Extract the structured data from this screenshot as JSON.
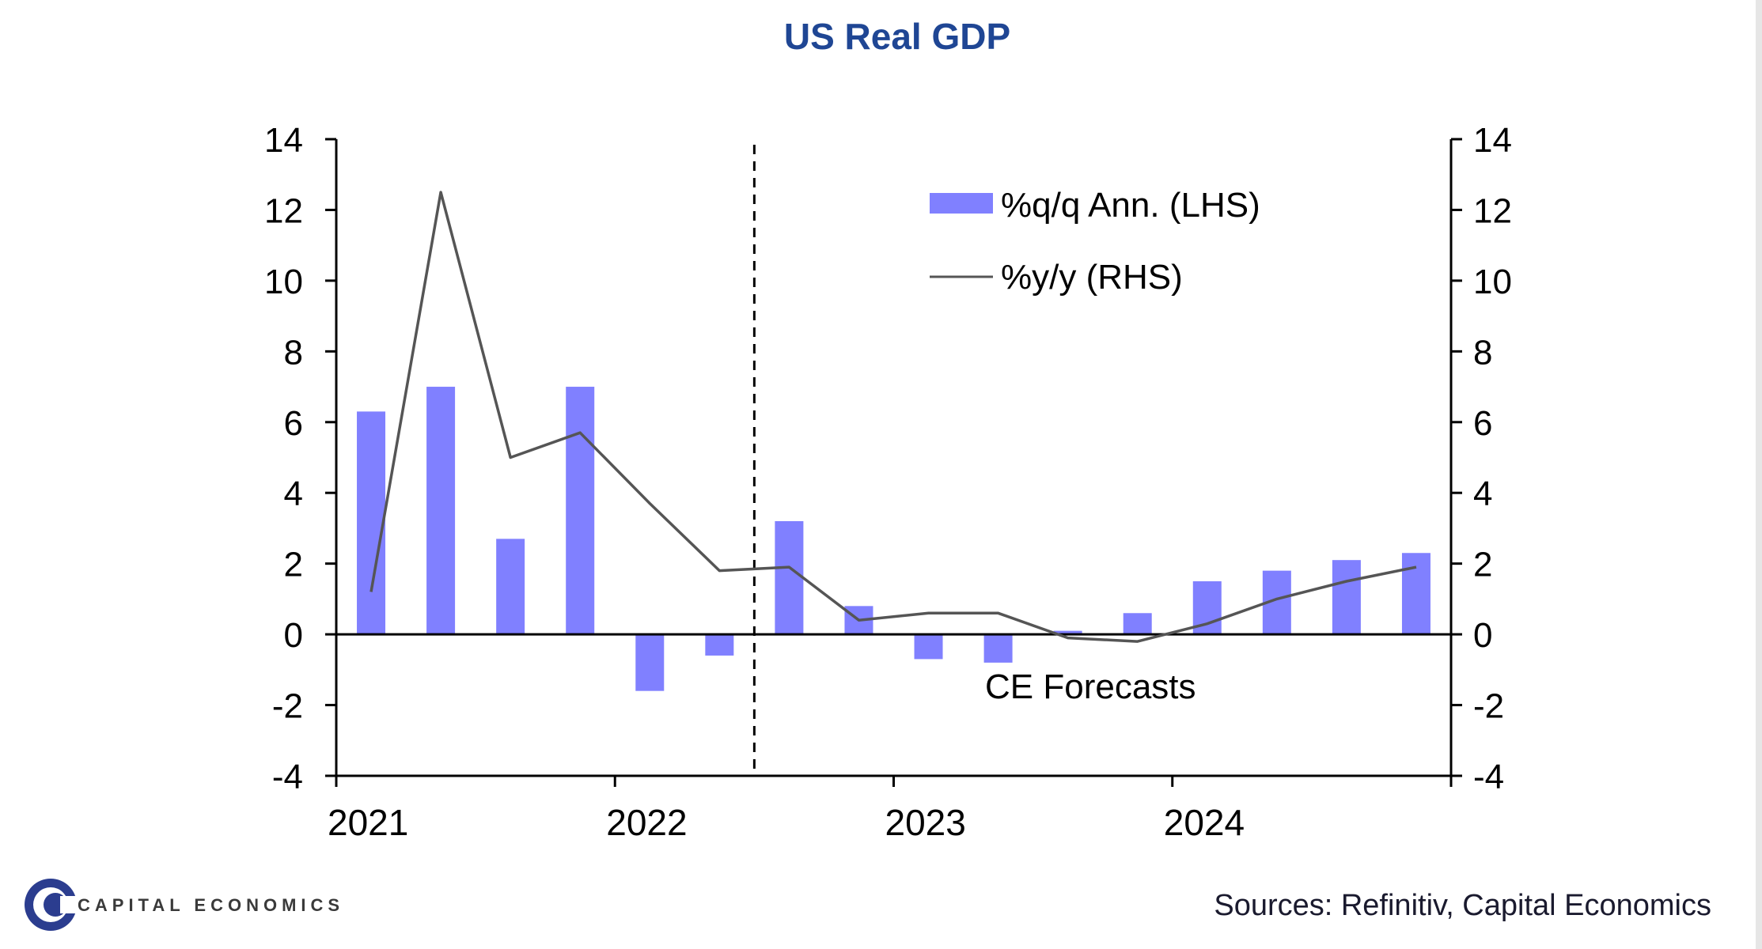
{
  "chart_data": {
    "type": "bar",
    "title": "US Real GDP",
    "x_ticks": [
      "2021",
      "2022",
      "2023",
      "2024"
    ],
    "y_left": {
      "min": -4,
      "max": 14,
      "ticks": [
        "14",
        "12",
        "10",
        "8",
        "6",
        "4",
        "2",
        "0",
        "-2",
        "-4"
      ]
    },
    "y_right": {
      "min": -4,
      "max": 14,
      "ticks": [
        "14",
        "12",
        "10",
        "8",
        "6",
        "4",
        "2",
        "0",
        "-2",
        "-4"
      ]
    },
    "quarters": [
      "2021 Q1",
      "2021 Q2",
      "2021 Q3",
      "2021 Q4",
      "2022 Q1",
      "2022 Q2",
      "2022 Q3",
      "2022 Q4",
      "2023 Q1",
      "2023 Q2",
      "2023 Q3",
      "2023 Q4",
      "2024 Q1",
      "2024 Q2",
      "2024 Q3",
      "2024 Q4"
    ],
    "series": [
      {
        "name": "%q/q Ann. (LHS)",
        "type": "bar",
        "axis": "left",
        "color": "#8080ff",
        "values": [
          6.3,
          7.0,
          2.7,
          7.0,
          -1.6,
          -0.6,
          3.2,
          0.8,
          -0.7,
          -0.8,
          0.1,
          0.6,
          1.5,
          1.8,
          2.1,
          2.3
        ]
      },
      {
        "name": "%y/y (RHS)",
        "type": "line",
        "axis": "right",
        "color": "#555555",
        "values": [
          1.2,
          12.5,
          5.0,
          5.7,
          3.7,
          1.8,
          1.9,
          0.4,
          0.6,
          0.6,
          -0.1,
          -0.2,
          0.3,
          1.0,
          1.5,
          1.9
        ]
      }
    ],
    "forecast_start_after": "2022 Q2",
    "annotation": "CE Forecasts",
    "legend_position": "top-right"
  },
  "logo": {
    "text": "CAPITAL ECONOMICS"
  },
  "source": "Sources: Refinitiv, Capital Economics"
}
